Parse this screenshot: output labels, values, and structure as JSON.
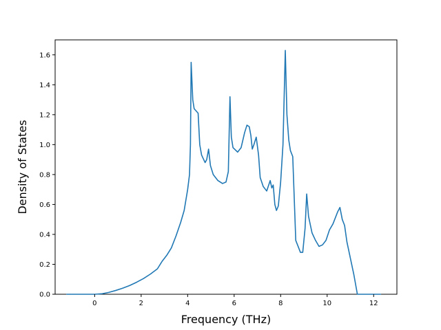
{
  "chart_data": {
    "type": "line",
    "xlabel": "Frequency (THz)",
    "ylabel": "Density of States",
    "xlim": [
      -1.7,
      13.0
    ],
    "ylim": [
      0.0,
      1.7
    ],
    "x_ticks": [
      0,
      2,
      4,
      6,
      8,
      10,
      12
    ],
    "y_ticks": [
      0.0,
      0.2,
      0.4,
      0.6,
      0.8,
      1.0,
      1.2,
      1.4,
      1.6
    ],
    "x_tick_labels": [
      "0",
      "2",
      "4",
      "6",
      "8",
      "10",
      "12"
    ],
    "y_tick_labels": [
      "0.0",
      "0.2",
      "0.4",
      "0.6",
      "0.8",
      "1.0",
      "1.2",
      "1.4",
      "1.6"
    ],
    "grid": false,
    "line_color": "#1f77b4",
    "series": [
      {
        "points": [
          [
            -1.2,
            0.0
          ],
          [
            0.0,
            0.0
          ],
          [
            0.3,
            0.003
          ],
          [
            0.6,
            0.012
          ],
          [
            0.9,
            0.025
          ],
          [
            1.2,
            0.04
          ],
          [
            1.5,
            0.058
          ],
          [
            1.8,
            0.08
          ],
          [
            2.1,
            0.105
          ],
          [
            2.4,
            0.135
          ],
          [
            2.7,
            0.17
          ],
          [
            2.9,
            0.22
          ],
          [
            3.1,
            0.26
          ],
          [
            3.3,
            0.31
          ],
          [
            3.5,
            0.39
          ],
          [
            3.7,
            0.48
          ],
          [
            3.85,
            0.56
          ],
          [
            4.0,
            0.7
          ],
          [
            4.08,
            0.8
          ],
          [
            4.12,
            1.0
          ],
          [
            4.15,
            1.55
          ],
          [
            4.22,
            1.3
          ],
          [
            4.28,
            1.24
          ],
          [
            4.45,
            1.21
          ],
          [
            4.52,
            1.0
          ],
          [
            4.6,
            0.93
          ],
          [
            4.75,
            0.88
          ],
          [
            4.82,
            0.9
          ],
          [
            4.9,
            0.97
          ],
          [
            4.98,
            0.86
          ],
          [
            5.1,
            0.8
          ],
          [
            5.3,
            0.76
          ],
          [
            5.5,
            0.74
          ],
          [
            5.65,
            0.75
          ],
          [
            5.75,
            0.82
          ],
          [
            5.82,
            1.32
          ],
          [
            5.88,
            1.05
          ],
          [
            5.95,
            0.98
          ],
          [
            6.15,
            0.95
          ],
          [
            6.3,
            0.98
          ],
          [
            6.45,
            1.08
          ],
          [
            6.55,
            1.13
          ],
          [
            6.65,
            1.12
          ],
          [
            6.72,
            1.06
          ],
          [
            6.78,
            0.97
          ],
          [
            6.85,
            1.0
          ],
          [
            6.95,
            1.05
          ],
          [
            7.05,
            0.93
          ],
          [
            7.12,
            0.78
          ],
          [
            7.25,
            0.72
          ],
          [
            7.4,
            0.69
          ],
          [
            7.55,
            0.76
          ],
          [
            7.62,
            0.71
          ],
          [
            7.68,
            0.73
          ],
          [
            7.75,
            0.6
          ],
          [
            7.82,
            0.56
          ],
          [
            7.9,
            0.59
          ],
          [
            8.0,
            0.75
          ],
          [
            8.1,
            1.0
          ],
          [
            8.2,
            1.63
          ],
          [
            8.27,
            1.2
          ],
          [
            8.35,
            1.03
          ],
          [
            8.42,
            0.96
          ],
          [
            8.52,
            0.92
          ],
          [
            8.65,
            0.36
          ],
          [
            8.75,
            0.32
          ],
          [
            8.85,
            0.28
          ],
          [
            8.95,
            0.28
          ],
          [
            9.05,
            0.44
          ],
          [
            9.12,
            0.67
          ],
          [
            9.2,
            0.52
          ],
          [
            9.35,
            0.41
          ],
          [
            9.5,
            0.36
          ],
          [
            9.65,
            0.32
          ],
          [
            9.8,
            0.33
          ],
          [
            9.95,
            0.36
          ],
          [
            10.1,
            0.43
          ],
          [
            10.25,
            0.47
          ],
          [
            10.45,
            0.55
          ],
          [
            10.55,
            0.58
          ],
          [
            10.65,
            0.5
          ],
          [
            10.75,
            0.46
          ],
          [
            10.85,
            0.35
          ],
          [
            11.0,
            0.24
          ],
          [
            11.15,
            0.13
          ],
          [
            11.3,
            0.0
          ],
          [
            12.3,
            0.0
          ]
        ]
      }
    ]
  }
}
